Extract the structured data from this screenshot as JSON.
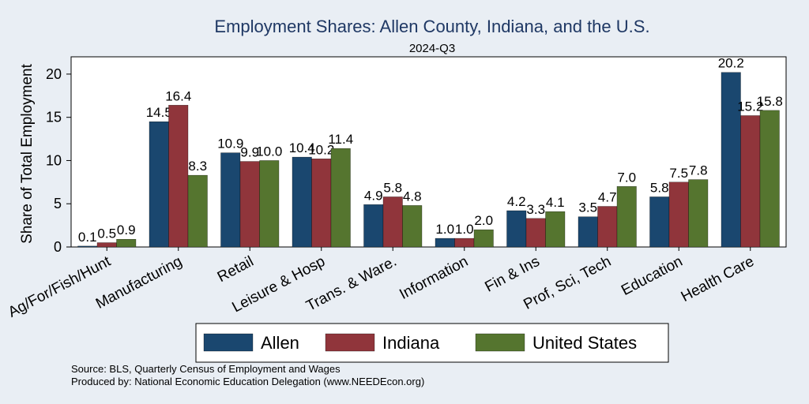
{
  "chart_data": {
    "type": "bar",
    "title": "Employment Shares: Allen County, Indiana, and the U.S.",
    "subtitle": "2024-Q3",
    "ylabel": "Share of Total Employment",
    "xlabel": "",
    "ylim": [
      0,
      22
    ],
    "yticks": [
      0,
      5,
      10,
      15,
      20
    ],
    "grid": false,
    "legend_position": "bottom",
    "categories": [
      "Ag/For/Fish/Hunt",
      "Manufacturing",
      "Retail",
      "Leisure & Hosp",
      "Trans. & Ware.",
      "Information",
      "Fin & Ins",
      "Prof, Sci, Tech",
      "Education",
      "Health Care"
    ],
    "series": [
      {
        "name": "Allen",
        "color": "#1a476f",
        "values": [
          0.1,
          14.5,
          10.9,
          10.4,
          4.9,
          1.0,
          4.2,
          3.5,
          5.8,
          20.2
        ],
        "labels": [
          "0.1",
          "14.5",
          "10.9",
          "10.4",
          "4.9",
          "1.0",
          "4.2",
          "3.5",
          "5.8",
          "20.2"
        ]
      },
      {
        "name": "Indiana",
        "color": "#90353b",
        "values": [
          0.5,
          16.4,
          9.9,
          10.2,
          5.8,
          1.0,
          3.3,
          4.7,
          7.5,
          15.2
        ],
        "labels": [
          "0.5",
          "16.4",
          "9.9",
          "10.2",
          "5.8",
          "1.0",
          "3.3",
          "4.7",
          "7.5",
          "15.2"
        ]
      },
      {
        "name": "United States",
        "color": "#55752f",
        "values": [
          0.9,
          8.3,
          10.0,
          11.4,
          4.8,
          2.0,
          4.1,
          7.0,
          7.8,
          15.8
        ],
        "labels": [
          "0.9",
          "8.3",
          "10.0",
          "11.4",
          "4.8",
          "2.0",
          "4.1",
          "7.0",
          "7.8",
          "15.8"
        ]
      }
    ],
    "notes": [
      "Source: BLS, Quarterly Census of Employment and Wages",
      "Produced by: National Economic Education Delegation (www.NEEDEcon.org)"
    ]
  }
}
